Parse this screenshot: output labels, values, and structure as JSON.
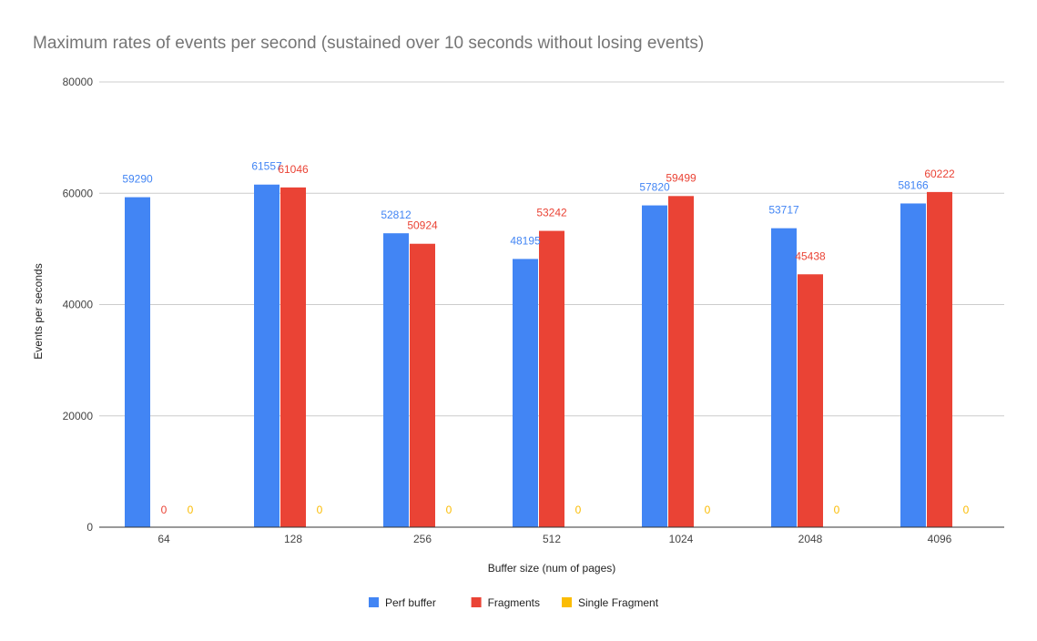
{
  "chart_data": {
    "type": "bar",
    "title": "Maximum rates of events per second (sustained over 10 seconds without losing events)",
    "xlabel": "Buffer size (num of pages)",
    "ylabel": "Events per seconds",
    "ylim": [
      0,
      80000
    ],
    "yticks": [
      0,
      20000,
      40000,
      60000,
      80000
    ],
    "ytick_labels": [
      "0",
      "20000",
      "40000",
      "60000",
      "80000"
    ],
    "grid": true,
    "legend_position": "bottom",
    "categories": [
      "64",
      "128",
      "256",
      "512",
      "1024",
      "2048",
      "4096"
    ],
    "series": [
      {
        "name": "Perf buffer",
        "color": "#4285f4",
        "values": [
          59290,
          61557,
          52812,
          48195,
          57820,
          53717,
          58166
        ]
      },
      {
        "name": "Fragments",
        "color": "#ea4335",
        "values": [
          0,
          61046,
          50924,
          53242,
          59499,
          45438,
          60222
        ]
      },
      {
        "name": "Single Fragment",
        "color": "#fbbc04",
        "values": [
          0,
          0,
          0,
          0,
          0,
          0,
          0
        ]
      }
    ]
  }
}
